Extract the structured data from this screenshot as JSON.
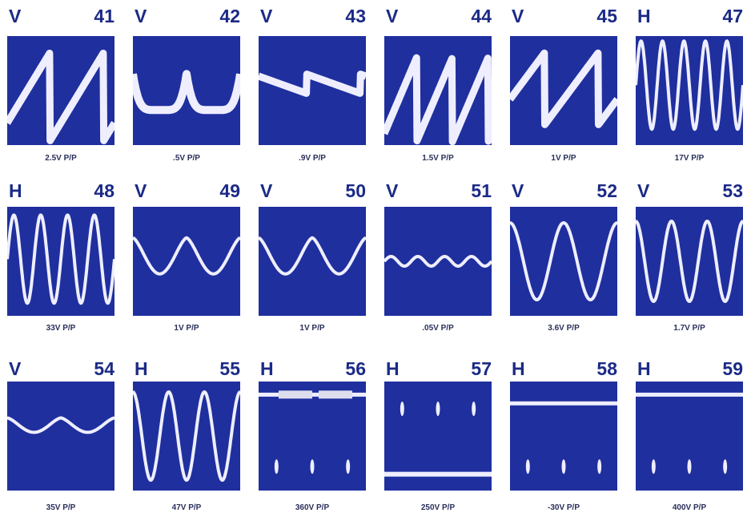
{
  "panels": [
    {
      "mode": "V",
      "number": "41",
      "caption": "2.5V P/P"
    },
    {
      "mode": "V",
      "number": "42",
      "caption": ".5V P/P"
    },
    {
      "mode": "V",
      "number": "43",
      "caption": ".9V P/P"
    },
    {
      "mode": "V",
      "number": "44",
      "caption": "1.5V P/P"
    },
    {
      "mode": "V",
      "number": "45",
      "caption": "1V P/P"
    },
    {
      "mode": "H",
      "number": "47",
      "caption": "17V P/P"
    },
    {
      "mode": "H",
      "number": "48",
      "caption": "33V P/P"
    },
    {
      "mode": "V",
      "number": "49",
      "caption": "1V P/P"
    },
    {
      "mode": "V",
      "number": "50",
      "caption": "1V P/P"
    },
    {
      "mode": "V",
      "number": "51",
      "caption": ".05V P/P"
    },
    {
      "mode": "V",
      "number": "52",
      "caption": "3.6V P/P"
    },
    {
      "mode": "V",
      "number": "53",
      "caption": "1.7V P/P"
    },
    {
      "mode": "V",
      "number": "54",
      "caption": "35V P/P"
    },
    {
      "mode": "H",
      "number": "55",
      "caption": "47V P/P"
    },
    {
      "mode": "H",
      "number": "56",
      "caption": "360V P/P"
    },
    {
      "mode": "H",
      "number": "57",
      "caption": "250V P/P"
    },
    {
      "mode": "H",
      "number": "58",
      "caption": "-30V P/P"
    },
    {
      "mode": "H",
      "number": "59",
      "caption": "400V P/P"
    }
  ]
}
